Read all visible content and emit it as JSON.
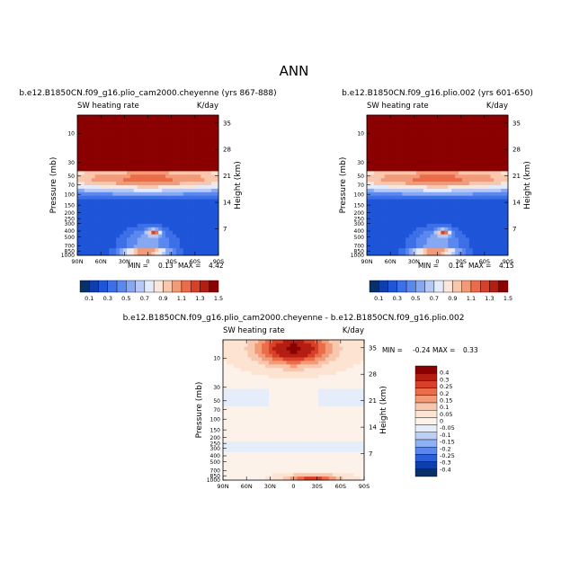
{
  "figure": {
    "title": "ANN"
  },
  "colors": {
    "scale": [
      "#08306b",
      "#0d3fb0",
      "#1f55d8",
      "#3d6fe6",
      "#5a88ee",
      "#86a8f2",
      "#b6c8f6",
      "#e4ebfb",
      "#fbe6dc",
      "#f8c7ae",
      "#f29b79",
      "#ea6c48",
      "#d9402a",
      "#b41e12",
      "#8b0000"
    ],
    "diff_scale": [
      "#08306b",
      "#0d3fb0",
      "#2a5fd8",
      "#5a88ee",
      "#8fb0f2",
      "#bccff7",
      "#e5edfb",
      "#fdf2ea",
      "#fde3d2",
      "#f8c7ae",
      "#f29b79",
      "#ea6c48",
      "#d9402a",
      "#b41e12",
      "#8b0000"
    ]
  },
  "chart_data": [
    {
      "type": "heatmap",
      "id": "left",
      "case": "b.e12.B1850CN.f09_g16.plio_cam2000.cheyenne (yrs 867-888)",
      "variable": "SW heating rate",
      "units": "K/day",
      "ylabel": "Pressure (mb)",
      "ylabel_right": "Height (km)",
      "x_ticks": [
        "90N",
        "60N",
        "30N",
        "0",
        "30S",
        "60S",
        "90S"
      ],
      "y_ticks": [
        "10",
        "30",
        "50",
        "70",
        "100",
        "150",
        "200",
        "250",
        "300",
        "400",
        "500",
        "700",
        "850",
        "1000"
      ],
      "y_ticks_right": [
        "35",
        "28",
        "21",
        "14",
        "7"
      ],
      "stats": {
        "min_label": "MIN =",
        "min": "0.13",
        "max_label": "MAX =",
        "max": "4.42"
      },
      "colorbar_labels": [
        "0.1",
        "0.3",
        "0.5",
        "0.7",
        "0.9",
        "1.1",
        "1.3",
        "1.5"
      ]
    },
    {
      "type": "heatmap",
      "id": "right",
      "case": "b.e12.B1850CN.f09_g16.plio.002 (yrs 601-650)",
      "variable": "SW heating rate",
      "units": "K/day",
      "ylabel": "Pressure (mb)",
      "ylabel_right": "Height (km)",
      "x_ticks": [
        "90N",
        "60N",
        "30N",
        "0",
        "30S",
        "60S",
        "90S"
      ],
      "y_ticks": [
        "10",
        "30",
        "50",
        "70",
        "100",
        "150",
        "200",
        "250",
        "300",
        "400",
        "500",
        "700",
        "850",
        "1000"
      ],
      "y_ticks_right": [
        "35",
        "28",
        "21",
        "14",
        "7"
      ],
      "stats": {
        "min_label": "MIN =",
        "min": "0.14",
        "max_label": "MAX =",
        "max": "4.15"
      },
      "colorbar_labels": [
        "0.1",
        "0.3",
        "0.5",
        "0.7",
        "0.9",
        "1.1",
        "1.3",
        "1.5"
      ]
    },
    {
      "type": "heatmap",
      "id": "diff",
      "case": "b.e12.B1850CN.f09_g16.plio_cam2000.cheyenne - b.e12.B1850CN.f09_g16.plio.002",
      "variable": "SW heating rate",
      "units": "K/day",
      "ylabel": "Pressure (mb)",
      "ylabel_right": "Height (km)",
      "x_ticks": [
        "90N",
        "60N",
        "30N",
        "0",
        "30S",
        "60S",
        "90S"
      ],
      "y_ticks": [
        "10",
        "30",
        "50",
        "70",
        "100",
        "150",
        "200",
        "250",
        "300",
        "400",
        "500",
        "700",
        "850",
        "1000"
      ],
      "y_ticks_right": [
        "35",
        "28",
        "21",
        "14",
        "7"
      ],
      "stats": {
        "min_label": "MIN =",
        "min": "-0.24",
        "max_label": "MAX =",
        "max": "0.33"
      },
      "colorbar_labels": [
        "0.4",
        "0.3",
        "0.25",
        "0.2",
        "0.15",
        "0.1",
        "0.05",
        "0",
        "-0.05",
        "-0.1",
        "-0.15",
        "-0.2",
        "-0.25",
        "-0.3",
        "-0.4"
      ]
    }
  ]
}
